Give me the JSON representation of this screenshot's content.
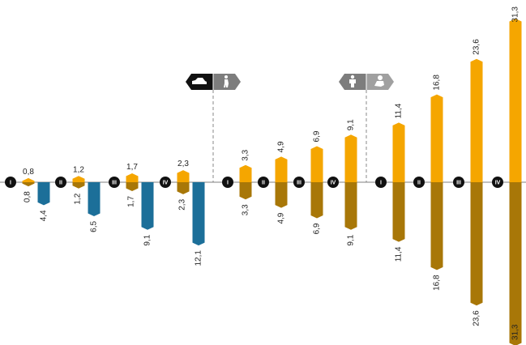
{
  "chart_data": {
    "type": "bar",
    "title": "",
    "xlabel": "",
    "ylabel": "",
    "ylim": [
      -31.3,
      31.3
    ],
    "grid": false,
    "legend": "none",
    "groups": [
      {
        "name": "",
        "icons": [],
        "categories": [
          "I",
          "II",
          "III",
          "IV"
        ],
        "up": [
          0.8,
          1.2,
          1.7,
          2.3
        ],
        "up_labels": [
          "0,8",
          "1,2",
          "1,7",
          "2,3"
        ],
        "down_a": [
          0.8,
          1.2,
          1.7,
          2.3
        ],
        "down_a_labels": [
          "0,8",
          "1,2",
          "1,7",
          "2,3"
        ],
        "down_b": [
          4.4,
          6.5,
          9.1,
          12.1
        ],
        "down_b_labels": [
          "4,4",
          "6,5",
          "9,1",
          "12,1"
        ]
      },
      {
        "name": "",
        "icons": [
          "car-icon",
          "pedestrian-icon"
        ],
        "categories": [
          "I",
          "II",
          "III",
          "IV"
        ],
        "up": [
          3.3,
          4.9,
          6.9,
          9.1
        ],
        "up_labels": [
          "3,3",
          "4,9",
          "6,9",
          "9,1"
        ],
        "down_a": [
          3.3,
          4.9,
          6.9,
          9.1
        ],
        "down_a_labels": [
          "3,3",
          "4,9",
          "6,9",
          "9,1"
        ]
      },
      {
        "name": "",
        "icons": [
          "person-icon",
          "baby-icon"
        ],
        "categories": [
          "I",
          "II",
          "III",
          "IV"
        ],
        "up": [
          11.4,
          16.8,
          23.6,
          31.3
        ],
        "up_labels": [
          "11,4",
          "16,8",
          "23,6",
          "31,3"
        ],
        "down_a": [
          11.4,
          16.8,
          23.6,
          31.3
        ],
        "down_a_labels": [
          "11,4",
          "16,8",
          "23,6",
          "31,3"
        ]
      }
    ]
  },
  "colors": {
    "orange": "#f5a600",
    "brown": "#a87708",
    "blue": "#1c6f99",
    "axis": "#7f7f7f",
    "badge": "#111111",
    "icon_dark": "#111111",
    "icon_gray": "#7d7d7d"
  }
}
